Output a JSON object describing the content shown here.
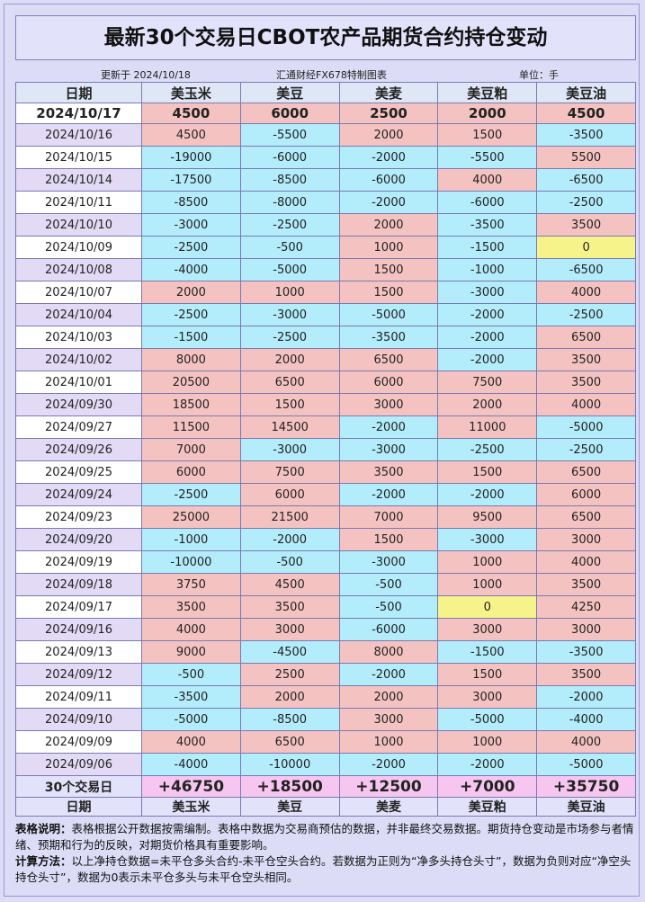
{
  "title": "最新30个交易日CBOT农产品期货合约持仓变动",
  "subheader": {
    "updated": "更新于 2024/10/18",
    "source": "汇通财经FX678特制图表",
    "unit": "单位：手"
  },
  "table": {
    "date_header": "日期",
    "columns": [
      "美玉米",
      "美豆",
      "美麦",
      "美豆粕",
      "美豆油"
    ],
    "latest": {
      "date": "2024/10/17",
      "values": [
        4500,
        6000,
        2500,
        2000,
        4500
      ]
    },
    "rows": [
      {
        "date": "2024/10/16",
        "values": [
          4500,
          -5500,
          2000,
          1500,
          -3500
        ]
      },
      {
        "date": "2024/10/15",
        "values": [
          -19000,
          -6000,
          -2000,
          -5500,
          5500
        ]
      },
      {
        "date": "2024/10/14",
        "values": [
          -17500,
          -8500,
          -6000,
          4000,
          -6500
        ]
      },
      {
        "date": "2024/10/11",
        "values": [
          -8500,
          -8000,
          -2000,
          -6000,
          -2500
        ]
      },
      {
        "date": "2024/10/10",
        "values": [
          -3000,
          -2500,
          2000,
          -3500,
          3500
        ]
      },
      {
        "date": "2024/10/09",
        "values": [
          -2500,
          -500,
          1000,
          -1500,
          0
        ]
      },
      {
        "date": "2024/10/08",
        "values": [
          -4000,
          -5000,
          1500,
          -1000,
          -6500
        ]
      },
      {
        "date": "2024/10/07",
        "values": [
          2000,
          1000,
          1500,
          -3000,
          4000
        ]
      },
      {
        "date": "2024/10/04",
        "values": [
          -2500,
          -3000,
          -5000,
          -2000,
          -2500
        ]
      },
      {
        "date": "2024/10/03",
        "values": [
          -1500,
          -2500,
          -3500,
          -2000,
          6500
        ]
      },
      {
        "date": "2024/10/02",
        "values": [
          8000,
          2000,
          6500,
          -2000,
          3500
        ]
      },
      {
        "date": "2024/10/01",
        "values": [
          20500,
          6500,
          6000,
          7500,
          3500
        ]
      },
      {
        "date": "2024/09/30",
        "values": [
          18500,
          1500,
          3000,
          2000,
          4000
        ]
      },
      {
        "date": "2024/09/27",
        "values": [
          11500,
          14500,
          -2000,
          11000,
          -5000
        ]
      },
      {
        "date": "2024/09/26",
        "values": [
          7000,
          -3000,
          -3000,
          -2500,
          -2500
        ]
      },
      {
        "date": "2024/09/25",
        "values": [
          6000,
          7500,
          3500,
          1500,
          6500
        ]
      },
      {
        "date": "2024/09/24",
        "values": [
          -2500,
          6000,
          -2000,
          -2000,
          6000
        ]
      },
      {
        "date": "2024/09/23",
        "values": [
          25000,
          21500,
          7000,
          9500,
          6500
        ]
      },
      {
        "date": "2024/09/20",
        "values": [
          -1000,
          -2000,
          1500,
          -3000,
          3000
        ]
      },
      {
        "date": "2024/09/19",
        "values": [
          -10000,
          -500,
          -3000,
          1000,
          4000
        ]
      },
      {
        "date": "2024/09/18",
        "values": [
          3750,
          4500,
          -500,
          1000,
          3500
        ]
      },
      {
        "date": "2024/09/17",
        "values": [
          3500,
          3500,
          -500,
          0,
          4250
        ]
      },
      {
        "date": "2024/09/16",
        "values": [
          4000,
          3000,
          -6000,
          3000,
          3000
        ]
      },
      {
        "date": "2024/09/13",
        "values": [
          9000,
          -4500,
          8000,
          -1500,
          -3500
        ]
      },
      {
        "date": "2024/09/12",
        "values": [
          -500,
          2500,
          -2000,
          1500,
          3500
        ]
      },
      {
        "date": "2024/09/11",
        "values": [
          -3500,
          2000,
          2000,
          3000,
          -2000
        ]
      },
      {
        "date": "2024/09/10",
        "values": [
          -5000,
          -8500,
          3000,
          -5000,
          -4000
        ]
      },
      {
        "date": "2024/09/09",
        "values": [
          4000,
          6500,
          1000,
          1000,
          4000
        ]
      },
      {
        "date": "2024/09/06",
        "values": [
          -4000,
          -10000,
          -2000,
          -2000,
          -5000
        ]
      }
    ],
    "total": {
      "label": "30个交易日",
      "values": [
        "+46750",
        "+18500",
        "+12500",
        "+7000",
        "+35750"
      ]
    }
  },
  "notes": [
    {
      "label": "表格说明：",
      "text": "表格根据公开数据按需编制。表格中数据为交易商预估的数据，并非最终交易数据。期货持仓变动是市场参与者情绪、预期和行为的反映，对期货价格具有重要影响。"
    },
    {
      "label": "计算方法：",
      "text": "以上净持仓数据=未平仓多头合约-未平仓空头合约。若数据为正则为“净多头持仓头寸”，数据为负则对应“净空头持仓头寸”，数据为0表示未平仓多头与未平仓空头相同。"
    }
  ]
}
